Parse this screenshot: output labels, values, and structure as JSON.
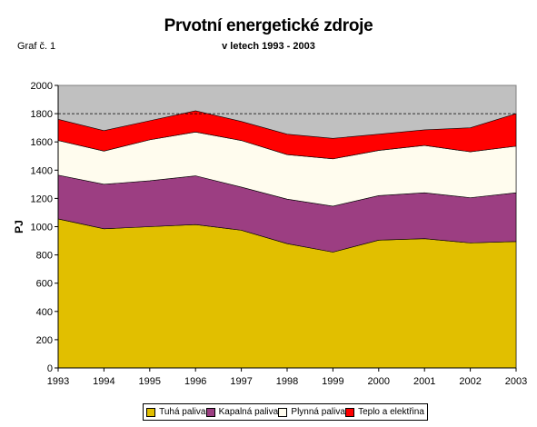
{
  "graf_label": "Graf č. 1",
  "chart_data": {
    "type": "area",
    "stacked": true,
    "title": "Prvotní energetické zdroje",
    "subtitle": "v letech 1993 - 2003",
    "xlabel": "",
    "ylabel": "PJ",
    "ylim": [
      0,
      2000
    ],
    "yticks": [
      "0",
      "200",
      "400",
      "600",
      "800",
      "1000",
      "1200",
      "1400",
      "1600",
      "1800",
      "2000"
    ],
    "categories": [
      "1993",
      "1994",
      "1995",
      "1996",
      "1997",
      "1998",
      "1999",
      "2000",
      "2001",
      "2002",
      "2003"
    ],
    "reference_line": 1800,
    "plot_background": "#c0c0c0",
    "legend_position": "bottom",
    "series": [
      {
        "name": "Tuhá paliva",
        "color": "#e1bf00",
        "values": [
          1055,
          985,
          1000,
          1015,
          975,
          880,
          820,
          905,
          915,
          885,
          895
        ]
      },
      {
        "name": "Kapalná paliva",
        "color": "#9c3e82",
        "values": [
          310,
          315,
          325,
          345,
          305,
          315,
          325,
          315,
          325,
          320,
          345
        ]
      },
      {
        "name": "Plynná paliva",
        "color": "#fffcee",
        "values": [
          245,
          235,
          290,
          310,
          330,
          315,
          335,
          320,
          335,
          325,
          330
        ]
      },
      {
        "name": "Teplo a elektřina",
        "color": "#ff0000",
        "values": [
          150,
          145,
          135,
          150,
          135,
          145,
          145,
          115,
          110,
          170,
          230
        ]
      }
    ]
  }
}
